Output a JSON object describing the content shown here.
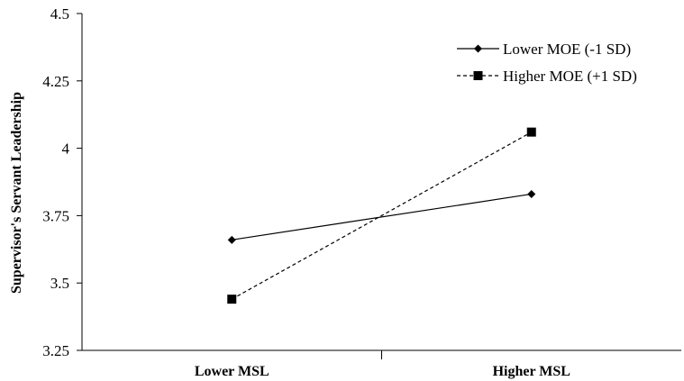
{
  "chart_data": {
    "type": "line",
    "categories": [
      "Lower MSL",
      "Higher MSL"
    ],
    "ylabel": "Supervisor's Servant Leadership",
    "ylim": [
      3.25,
      4.5
    ],
    "yticks": [
      "3.25",
      "3.5",
      "3.75",
      "4",
      "4.25",
      "4.5"
    ],
    "ytick_values": [
      3.25,
      3.5,
      3.75,
      4.0,
      4.25,
      4.5
    ],
    "grid": false,
    "legend_position": "top-right",
    "series": [
      {
        "name": "Lower MOE (-1 SD)",
        "values": [
          3.66,
          3.83
        ],
        "line_style": "solid",
        "marker": "diamond",
        "color": "#000000"
      },
      {
        "name": "Higher MOE (+1 SD)",
        "values": [
          3.44,
          4.06
        ],
        "line_style": "dashed",
        "marker": "square",
        "color": "#000000"
      }
    ]
  }
}
